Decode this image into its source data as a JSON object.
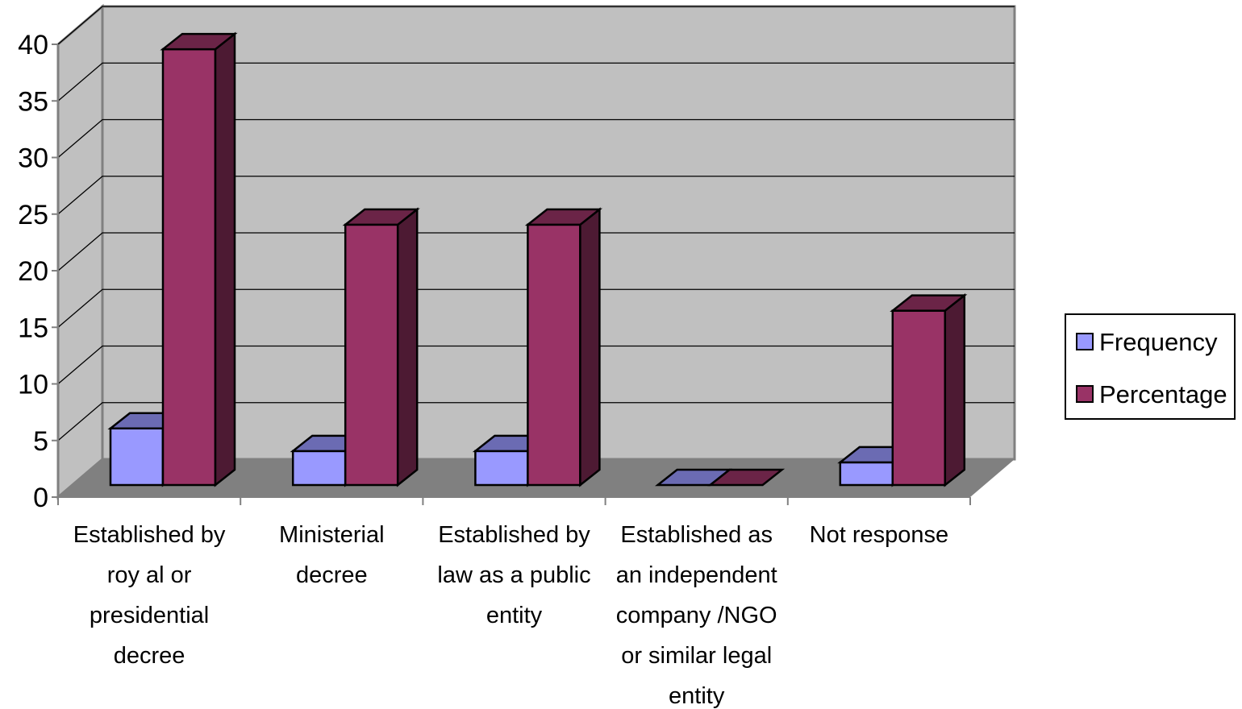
{
  "chart_data": {
    "type": "bar",
    "title": "",
    "xlabel": "",
    "ylabel": "",
    "ylim": [
      0,
      40
    ],
    "yticks": [
      0,
      5,
      10,
      15,
      20,
      25,
      30,
      35,
      40
    ],
    "categories": [
      [
        "Established by",
        "roy al or",
        "presidential",
        "decree"
      ],
      [
        "Ministerial",
        "decree"
      ],
      [
        "Established by",
        "law as a public",
        "entity"
      ],
      [
        "Established as",
        "an independent",
        "company /NGO",
        "or similar legal",
        "entity"
      ],
      [
        "Not response"
      ]
    ],
    "series": [
      {
        "name": "Frequency",
        "values": [
          5,
          3,
          3,
          0,
          2
        ],
        "color": "#9999ff",
        "top_color": "#6b6bb3",
        "side_color": "#4d4d80"
      },
      {
        "name": "Percentage",
        "values": [
          38.5,
          23,
          23,
          0,
          15.4
        ],
        "color": "#993366",
        "top_color": "#6b2447",
        "side_color": "#4d1a33"
      }
    ],
    "grid": true,
    "legend_position": "right",
    "wall_color": "#c0c0c0",
    "floor_color": "#808080"
  }
}
